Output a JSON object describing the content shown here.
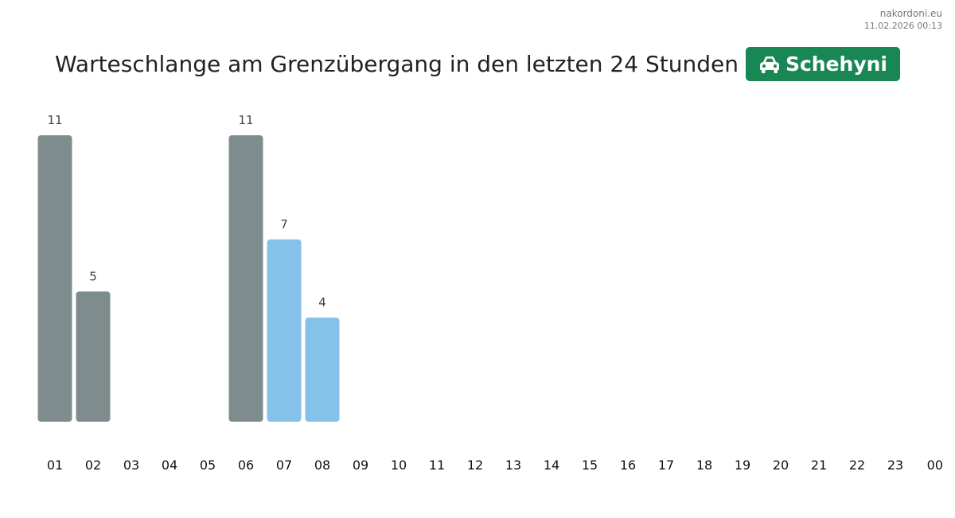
{
  "source": {
    "site": "nakordoni.eu",
    "timestamp": "11.02.2026 00:13"
  },
  "title": {
    "text": "Warteschlange am Grenzübergang in den letzten 24 Stunden",
    "badge_label": "Schehyni",
    "badge_icon": "car-icon",
    "badge_color": "#198754"
  },
  "chart_data": {
    "type": "bar",
    "title": "Warteschlange am Grenzübergang in den letzten 24 Stunden",
    "xlabel": "",
    "ylabel": "",
    "ylim": [
      0,
      11
    ],
    "grid": false,
    "legend": "none",
    "categories": [
      "01",
      "02",
      "03",
      "04",
      "05",
      "06",
      "07",
      "08",
      "09",
      "10",
      "11",
      "12",
      "13",
      "14",
      "15",
      "16",
      "17",
      "18",
      "19",
      "20",
      "21",
      "22",
      "23",
      "00"
    ],
    "values": [
      11,
      5,
      null,
      null,
      null,
      11,
      7,
      4,
      null,
      null,
      null,
      null,
      null,
      null,
      null,
      null,
      null,
      null,
      null,
      null,
      null,
      null,
      null,
      null
    ],
    "bar_colors": [
      "#7f8c8d",
      "#7f8c8d",
      null,
      null,
      null,
      "#7f8c8d",
      "#85c1e9",
      "#85c1e9",
      null,
      null,
      null,
      null,
      null,
      null,
      null,
      null,
      null,
      null,
      null,
      null,
      null,
      null,
      null,
      null
    ]
  }
}
